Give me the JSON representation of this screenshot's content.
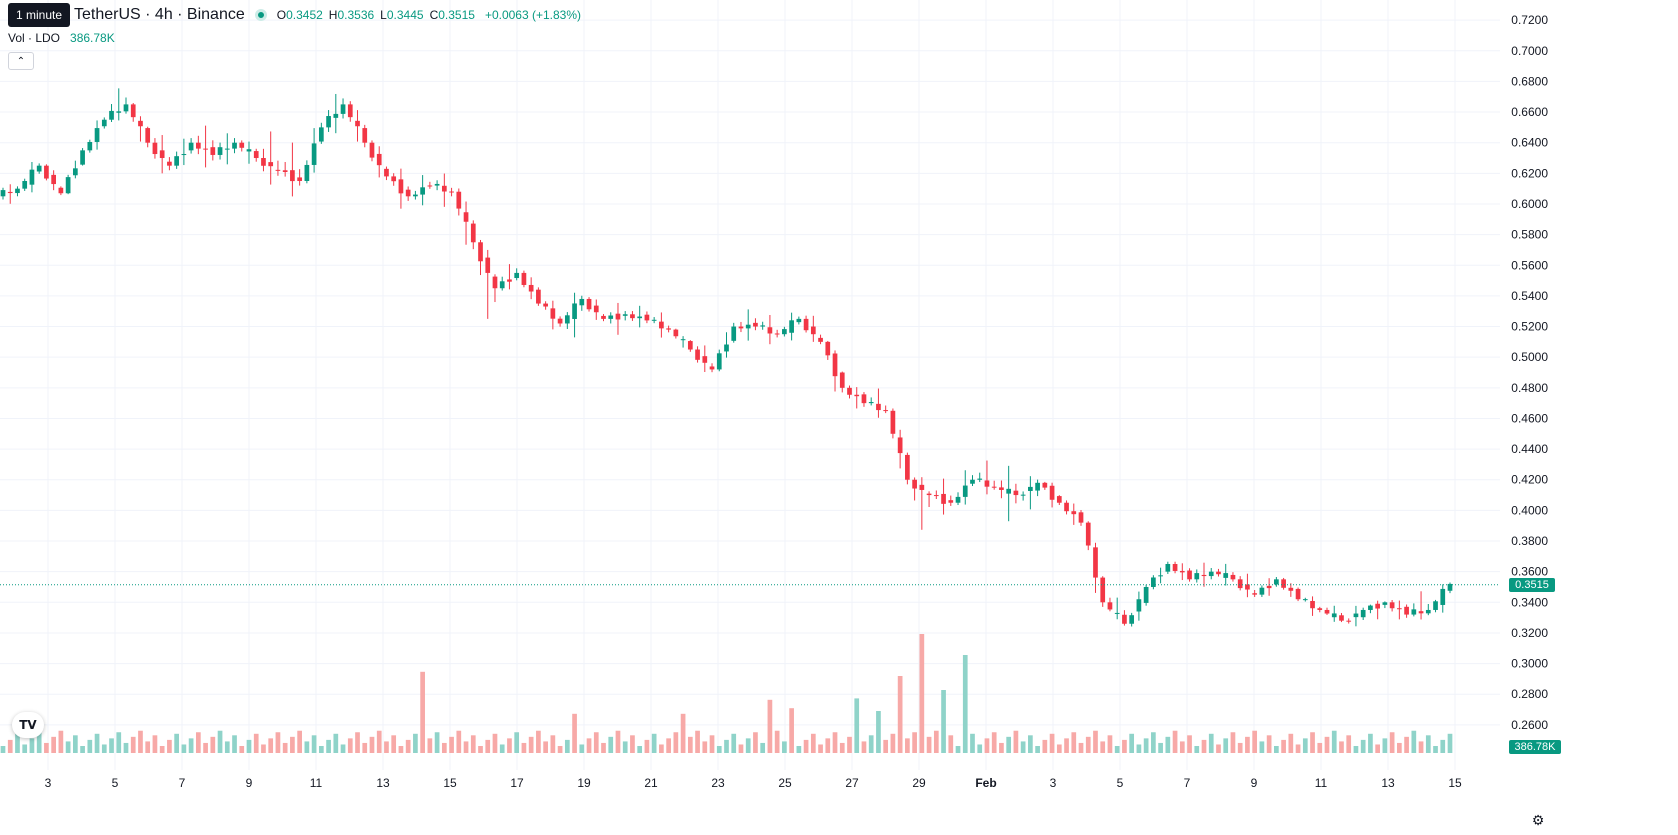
{
  "legend": {
    "symbol": "TetherUS · 4h · Binance",
    "o_label": "O",
    "o": "0.3452",
    "h_label": "H",
    "h": "0.3536",
    "l_label": "L",
    "l": "0.3445",
    "c_label": "C",
    "c": "0.3515",
    "change": "+0.0063 (+1.83%)"
  },
  "tooltip": "1 minute",
  "volume_legend": {
    "label": "Vol · LDO",
    "value": "386.78K"
  },
  "last_price_tag": "0.3515",
  "last_volume_tag": "386.78K",
  "colors": {
    "up": "#089981",
    "down": "#f23645",
    "up_vol": "#8fd3c9",
    "down_vol": "#f7a9a7",
    "grid": "#f0f3fa"
  },
  "chart_data": {
    "type": "candlestick",
    "interval": "4h",
    "y_ticks": [
      "0.7200",
      "0.7000",
      "0.6800",
      "0.6600",
      "0.6400",
      "0.6200",
      "0.6000",
      "0.5800",
      "0.5600",
      "0.5400",
      "0.5200",
      "0.5000",
      "0.4800",
      "0.4600",
      "0.4400",
      "0.4200",
      "0.4000",
      "0.3800",
      "0.3600",
      "0.3400",
      "0.3200",
      "0.3000",
      "0.2800",
      "0.2600"
    ],
    "ylim": [
      0.256,
      0.724
    ],
    "x_ticks": [
      "3",
      "5",
      "7",
      "9",
      "11",
      "13",
      "15",
      "17",
      "19",
      "21",
      "23",
      "25",
      "27",
      "29",
      "Feb",
      "3",
      "5",
      "7",
      "9",
      "11",
      "13",
      "15"
    ],
    "last_price": 0.3515,
    "ohlc_anchors": [
      [
        0.605,
        0.615,
        0.598,
        0.61
      ],
      [
        0.61,
        0.63,
        0.605,
        0.625
      ],
      [
        0.625,
        0.628,
        0.603,
        0.607
      ],
      [
        0.607,
        0.64,
        0.605,
        0.635
      ],
      [
        0.635,
        0.66,
        0.63,
        0.655
      ],
      [
        0.655,
        0.68,
        0.65,
        0.665
      ],
      [
        0.665,
        0.668,
        0.63,
        0.64
      ],
      [
        0.64,
        0.65,
        0.615,
        0.625
      ],
      [
        0.625,
        0.65,
        0.618,
        0.64
      ],
      [
        0.64,
        0.655,
        0.62,
        0.632
      ],
      [
        0.632,
        0.65,
        0.622,
        0.64
      ],
      [
        0.64,
        0.645,
        0.622,
        0.63
      ],
      [
        0.63,
        0.65,
        0.61,
        0.622
      ],
      [
        0.622,
        0.64,
        0.605,
        0.615
      ],
      [
        0.615,
        0.66,
        0.61,
        0.65
      ],
      [
        0.65,
        0.678,
        0.64,
        0.665
      ],
      [
        0.665,
        0.672,
        0.63,
        0.64
      ],
      [
        0.64,
        0.645,
        0.61,
        0.618
      ],
      [
        0.618,
        0.625,
        0.595,
        0.605
      ],
      [
        0.605,
        0.62,
        0.598,
        0.612
      ],
      [
        0.612,
        0.62,
        0.598,
        0.608
      ],
      [
        0.608,
        0.615,
        0.56,
        0.575
      ],
      [
        0.575,
        0.58,
        0.515,
        0.545
      ],
      [
        0.545,
        0.565,
        0.54,
        0.555
      ],
      [
        0.555,
        0.56,
        0.53,
        0.535
      ],
      [
        0.535,
        0.54,
        0.515,
        0.522
      ],
      [
        0.522,
        0.545,
        0.51,
        0.538
      ],
      [
        0.538,
        0.542,
        0.52,
        0.525
      ],
      [
        0.525,
        0.535,
        0.515,
        0.528
      ],
      [
        0.528,
        0.535,
        0.518,
        0.524
      ],
      [
        0.524,
        0.53,
        0.512,
        0.518
      ],
      [
        0.518,
        0.52,
        0.5,
        0.505
      ],
      [
        0.505,
        0.512,
        0.486,
        0.492
      ],
      [
        0.492,
        0.528,
        0.488,
        0.52
      ],
      [
        0.52,
        0.53,
        0.512,
        0.52
      ],
      [
        0.52,
        0.528,
        0.508,
        0.515
      ],
      [
        0.515,
        0.53,
        0.51,
        0.525
      ],
      [
        0.525,
        0.532,
        0.505,
        0.51
      ],
      [
        0.51,
        0.512,
        0.47,
        0.48
      ],
      [
        0.48,
        0.485,
        0.462,
        0.47
      ],
      [
        0.47,
        0.48,
        0.46,
        0.465
      ],
      [
        0.465,
        0.47,
        0.41,
        0.42
      ],
      [
        0.42,
        0.425,
        0.384,
        0.41
      ],
      [
        0.41,
        0.42,
        0.398,
        0.405
      ],
      [
        0.405,
        0.43,
        0.4,
        0.42
      ],
      [
        0.42,
        0.433,
        0.41,
        0.415
      ],
      [
        0.415,
        0.43,
        0.392,
        0.41
      ],
      [
        0.41,
        0.425,
        0.398,
        0.418
      ],
      [
        0.418,
        0.42,
        0.4,
        0.405
      ],
      [
        0.405,
        0.41,
        0.385,
        0.392
      ],
      [
        0.392,
        0.395,
        0.33,
        0.34
      ],
      [
        0.34,
        0.35,
        0.322,
        0.326
      ],
      [
        0.326,
        0.355,
        0.32,
        0.35
      ],
      [
        0.35,
        0.37,
        0.345,
        0.365
      ],
      [
        0.365,
        0.37,
        0.35,
        0.355
      ],
      [
        0.355,
        0.368,
        0.348,
        0.36
      ],
      [
        0.36,
        0.366,
        0.35,
        0.355
      ],
      [
        0.355,
        0.362,
        0.34,
        0.345
      ],
      [
        0.345,
        0.36,
        0.34,
        0.355
      ],
      [
        0.355,
        0.358,
        0.338,
        0.342
      ],
      [
        0.342,
        0.345,
        0.33,
        0.335
      ],
      [
        0.335,
        0.34,
        0.325,
        0.328
      ],
      [
        0.328,
        0.34,
        0.322,
        0.335
      ],
      [
        0.335,
        0.342,
        0.328,
        0.34
      ],
      [
        0.34,
        0.345,
        0.325,
        0.332
      ],
      [
        0.332,
        0.348,
        0.328,
        0.335
      ],
      [
        0.335,
        0.355,
        0.33,
        0.352
      ]
    ],
    "volume_spikes": [
      [
        19,
        "down",
        0.58
      ],
      [
        26,
        "down",
        0.28
      ],
      [
        31,
        "down",
        0.28
      ],
      [
        35,
        "down",
        0.38
      ],
      [
        36,
        "down",
        0.32
      ],
      [
        39,
        "up",
        0.39
      ],
      [
        40,
        "up",
        0.3
      ],
      [
        41,
        "down",
        0.55
      ],
      [
        42,
        "down",
        0.85
      ],
      [
        43,
        "up",
        0.45
      ],
      [
        44,
        "up",
        0.7
      ]
    ],
    "volume_max_label": "386.78K"
  }
}
